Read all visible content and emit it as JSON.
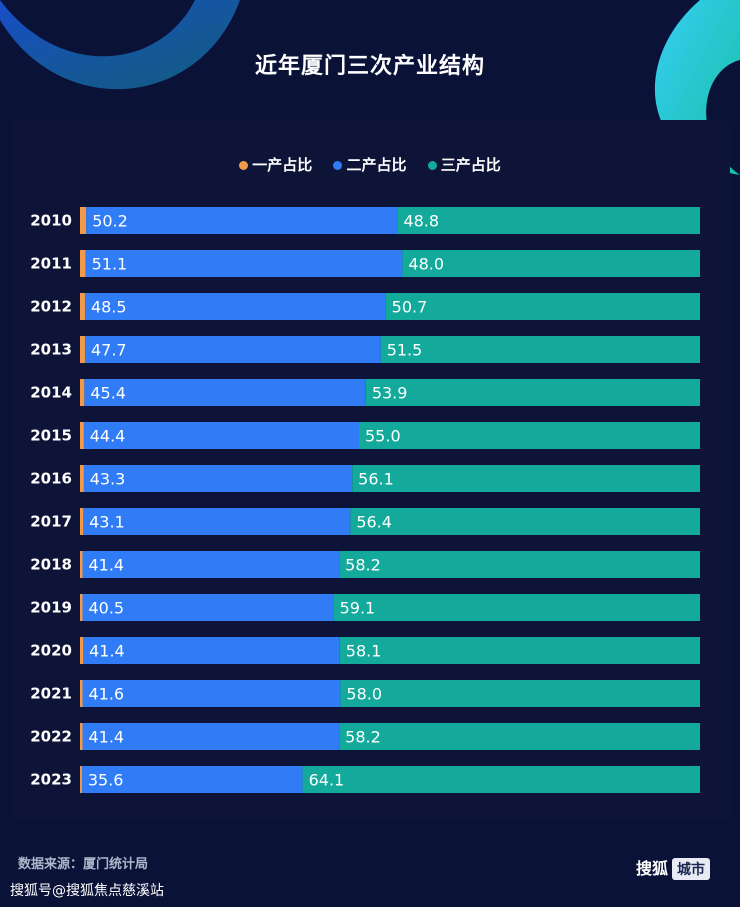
{
  "title": "近年厦门三次产业结构",
  "source": "数据来源：厦门统计局",
  "credit": "搜狐号@搜狐焦点慈溪站",
  "brand": {
    "name": "搜狐",
    "tag": "城市"
  },
  "colors": {
    "primary": "#f29a4a",
    "secondary": "#2f7cf6",
    "tertiary": "#13a99b",
    "background": "#0a1238"
  },
  "chart_data": {
    "type": "bar",
    "orientation": "horizontal",
    "stacked": true,
    "legend_position": "top-center",
    "categories": [
      "2010",
      "2011",
      "2012",
      "2013",
      "2014",
      "2015",
      "2016",
      "2017",
      "2018",
      "2019",
      "2020",
      "2021",
      "2022",
      "2023"
    ],
    "series": [
      {
        "name": "一产占比",
        "values": [
          1.0,
          0.9,
          0.8,
          0.8,
          0.7,
          0.6,
          0.6,
          0.5,
          0.4,
          0.4,
          0.5,
          0.4,
          0.4,
          0.3
        ]
      },
      {
        "name": "二产占比",
        "values": [
          50.2,
          51.1,
          48.5,
          47.7,
          45.4,
          44.4,
          43.3,
          43.1,
          41.4,
          40.5,
          41.4,
          41.6,
          41.4,
          35.6
        ]
      },
      {
        "name": "三产占比",
        "values": [
          48.8,
          48.0,
          50.7,
          51.5,
          53.9,
          55.0,
          56.1,
          56.4,
          58.2,
          59.1,
          58.1,
          58.0,
          58.2,
          64.1
        ]
      }
    ],
    "data_labels": {
      "二产占比": [
        "50.2",
        "51.1",
        "48.5",
        "47.7",
        "45.4",
        "44.4",
        "43.3",
        "43.1",
        "41.4",
        "40.5",
        "41.4",
        "41.6",
        "41.4",
        "35.6"
      ],
      "三产占比": [
        "48.8",
        "48.0",
        "50.7",
        "51.5",
        "53.9",
        "55.0",
        "56.1",
        "56.4",
        "58.2",
        "59.1",
        "58.1",
        "58.0",
        "58.2",
        "64.1"
      ]
    },
    "xlim": [
      0,
      100
    ]
  }
}
